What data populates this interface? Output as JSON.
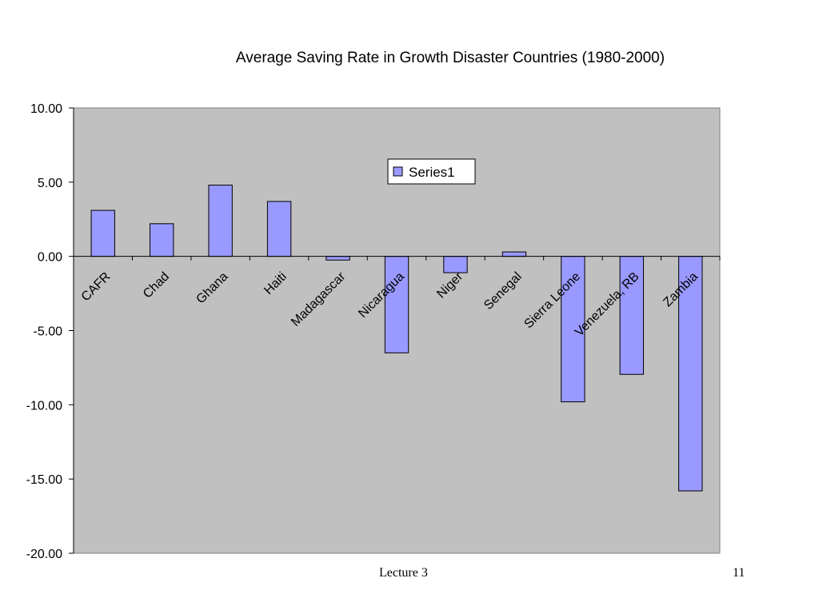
{
  "chart_data": {
    "type": "bar",
    "title": "Average Saving Rate in Growth Disaster Countries (1980-2000)",
    "xlabel": "",
    "ylabel": "",
    "categories": [
      "CAFR",
      "Chad",
      "Ghana",
      "Haiti",
      "Madagascar",
      "Nicaragua",
      "Niger",
      "Senegal",
      "Sierra Leone",
      "Venezuela, RB",
      "Zambia"
    ],
    "series": [
      {
        "name": "Series1",
        "values": [
          3.1,
          2.2,
          4.8,
          3.7,
          -0.25,
          -6.5,
          -1.1,
          0.3,
          -9.8,
          -7.95,
          -15.8
        ]
      }
    ],
    "ylim": [
      -20,
      10
    ],
    "yticks": [
      10,
      5,
      0,
      -5,
      -10,
      -15,
      -20
    ],
    "ytick_labels": [
      "10.00",
      "5.00",
      "0.00",
      "-5.00",
      "-10.00",
      "-15.00",
      "-20.00"
    ],
    "legend": "top-center",
    "grid": false,
    "colors": {
      "bar": "#9999ff",
      "plot_background": "#c0c0c0",
      "outline": "#000000"
    }
  },
  "footer": {
    "left": "Lecture 3",
    "right": "11"
  }
}
